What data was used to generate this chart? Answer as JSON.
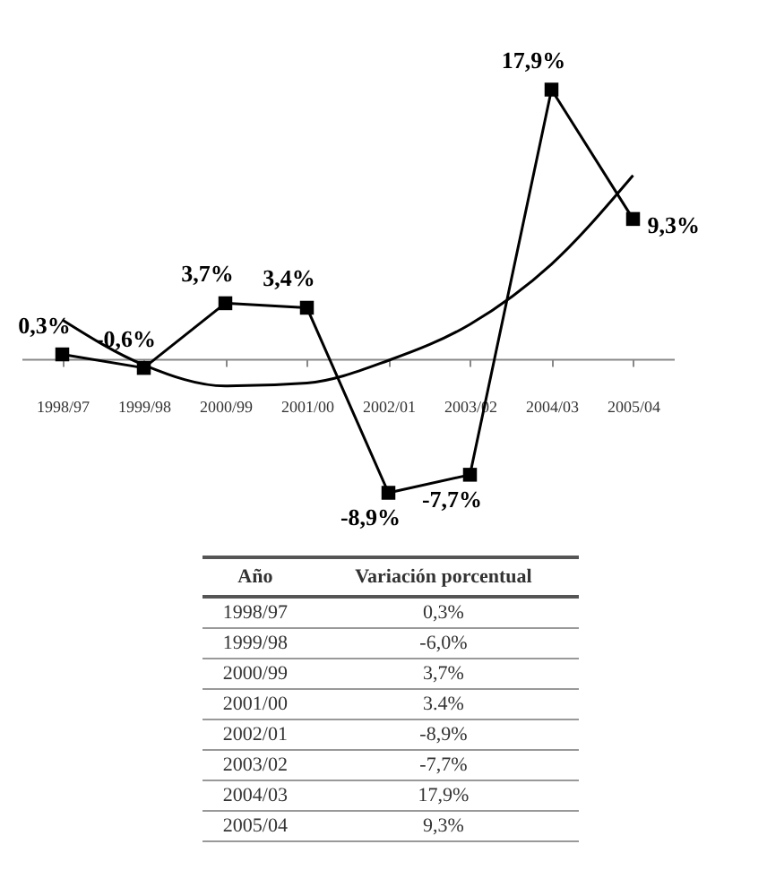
{
  "chart_data": {
    "type": "line",
    "categories": [
      "1998/97",
      "1999/98",
      "2000/99",
      "2001/00",
      "2002/01",
      "2003/02",
      "2004/03",
      "2005/04"
    ],
    "tick_labels": "x",
    "line_style": "solid",
    "series": [
      {
        "color": "#000000",
        "marker": "square",
        "values": [
          0.3,
          -0.6,
          3.7,
          3.4,
          -8.9,
          -7.7,
          17.9,
          9.3
        ],
        "value_labels": [
          "0,3%",
          "-0,6%",
          "3,7%",
          "3,4%",
          "-8,9%",
          "-7,7%",
          "17,9%",
          "9,3%"
        ]
      },
      {
        "type": "line",
        "color": "#000000",
        "marker": "none",
        "values": [
          2.6,
          -0.4,
          -1.8,
          -1.6,
          -0.1,
          2.3,
          6.3,
          12.2
        ]
      }
    ],
    "annotations": [
      "Año",
      "Variación porcentual",
      "1998/97",
      "0,3%",
      "1999/98",
      "-6,0%",
      "2000/99",
      "3,7%",
      "2001/00",
      "3.4%",
      "2002/01",
      "-8,9%",
      "2003/02",
      "-7,7%",
      "2004/03",
      "17,9%",
      "2005/04",
      "9,3%"
    ]
  }
}
